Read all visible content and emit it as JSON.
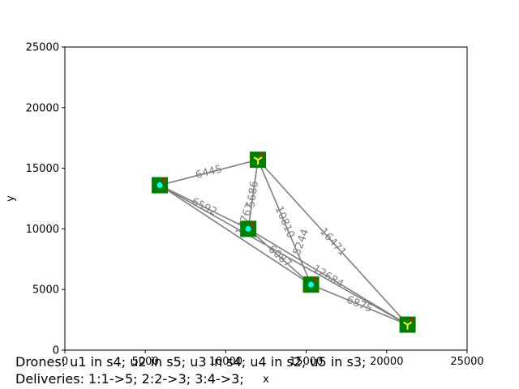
{
  "chart_data": {
    "type": "scatter",
    "xlabel": "x",
    "ylabel": "y",
    "xlim": [
      0,
      25000
    ],
    "ylim": [
      0,
      25000
    ],
    "x_ticks": [
      0,
      5000,
      10000,
      15000,
      20000,
      25000
    ],
    "y_ticks": [
      0,
      5000,
      10000,
      15000,
      20000,
      25000
    ],
    "grid": false,
    "stations": [
      {
        "id": "s1",
        "x": 5900,
        "y": 13600,
        "marker": "dot"
      },
      {
        "id": "s2",
        "x": 11400,
        "y": 10000,
        "marker": "dot"
      },
      {
        "id": "s3",
        "x": 15300,
        "y": 5400,
        "marker": "dot"
      },
      {
        "id": "s4",
        "x": 12000,
        "y": 15700,
        "marker": "drone"
      },
      {
        "id": "s5",
        "x": 21300,
        "y": 2100,
        "marker": "drone"
      }
    ],
    "edges": [
      {
        "from": "s1",
        "to": "s4",
        "label": "6445"
      },
      {
        "from": "s1",
        "to": "s2",
        "label": "6592"
      },
      {
        "from": "s1",
        "to": "s3",
        "label": ""
      },
      {
        "from": "s1",
        "to": "s5",
        "label": ""
      },
      {
        "from": "s4",
        "to": "s2",
        "label": "5686"
      },
      {
        "from": "s4",
        "to": "s3",
        "label": "10810"
      },
      {
        "from": "s4",
        "to": "s5",
        "label": "16471"
      },
      {
        "from": "s2",
        "to": "s3",
        "label": "6087"
      },
      {
        "from": "s2",
        "to": "s5",
        "label": "12684"
      },
      {
        "from": "s3",
        "to": "s5",
        "label": "6875"
      }
    ],
    "extra_labels": [
      {
        "text": "5244",
        "x": 14700,
        "y": 8900
      },
      {
        "text": "14767",
        "x": 11200,
        "y": 10800
      }
    ],
    "colors": {
      "edge": "#808080",
      "station_fill": "#008000",
      "station_dot": "#00ffff",
      "drone": "#ffff00",
      "tick": "#ff0000"
    }
  },
  "caption": {
    "line1": "Drones: u1 in s4; u2 in s5; u3 in s4; u4 in s2; u5 in s3;",
    "line2": "Deliveries: 1:1->5; 2:2->3; 3:4->3;"
  }
}
